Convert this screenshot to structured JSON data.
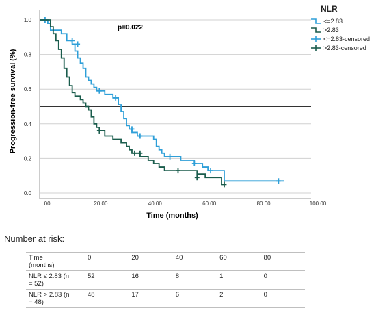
{
  "chart_data": {
    "type": "line",
    "title": "",
    "annotation": "p=0.022",
    "xlabel": "Time (months)",
    "ylabel": "Progression-free survival (%)",
    "xlim": [
      0,
      100
    ],
    "ylim": [
      0,
      1.0
    ],
    "xticks": [
      ".00",
      "20.00",
      "40.00",
      "60.00",
      "80.00",
      "100.00"
    ],
    "xtick_values": [
      0,
      20,
      40,
      60,
      80,
      100
    ],
    "yticks": [
      "0.0",
      "0.2",
      "0.4",
      "0.6",
      "0.8",
      "1.0"
    ],
    "ytick_values": [
      0,
      0.2,
      0.4,
      0.6,
      0.8,
      1.0
    ],
    "reference_line_y": 0.5,
    "grid": "horizontal",
    "legend": {
      "title": "NLR",
      "placement": "right",
      "entries": [
        "<=2.83",
        ">2.83",
        "<=2.83-censored",
        ">2.83-censored"
      ]
    },
    "series": [
      {
        "name": "<=2.83",
        "color": "#2e9fd8",
        "steps": [
          [
            0,
            1.0
          ],
          [
            3,
            0.98
          ],
          [
            4,
            0.94
          ],
          [
            8,
            0.92
          ],
          [
            10,
            0.88
          ],
          [
            12,
            0.86
          ],
          [
            13,
            0.82
          ],
          [
            14,
            0.78
          ],
          [
            15,
            0.75
          ],
          [
            16,
            0.72
          ],
          [
            17,
            0.67
          ],
          [
            18,
            0.65
          ],
          [
            19,
            0.63
          ],
          [
            20,
            0.61
          ],
          [
            21,
            0.59
          ],
          [
            24,
            0.57
          ],
          [
            27,
            0.55
          ],
          [
            29,
            0.51
          ],
          [
            30,
            0.47
          ],
          [
            31,
            0.43
          ],
          [
            32,
            0.39
          ],
          [
            33,
            0.37
          ],
          [
            34,
            0.35
          ],
          [
            36,
            0.33
          ],
          [
            42,
            0.31
          ],
          [
            43,
            0.27
          ],
          [
            44,
            0.25
          ],
          [
            45,
            0.23
          ],
          [
            46,
            0.21
          ],
          [
            52,
            0.19
          ],
          [
            57,
            0.17
          ],
          [
            60,
            0.15
          ],
          [
            62,
            0.13
          ],
          [
            68,
            0.07
          ],
          [
            90,
            0.07
          ]
        ],
        "censored": [
          [
            2,
            1.0
          ],
          [
            12,
            0.88
          ],
          [
            14,
            0.86
          ],
          [
            22,
            0.59
          ],
          [
            28,
            0.55
          ],
          [
            34,
            0.37
          ],
          [
            37,
            0.33
          ],
          [
            48,
            0.21
          ],
          [
            57,
            0.17
          ],
          [
            63,
            0.13
          ],
          [
            88,
            0.07
          ]
        ]
      },
      {
        "name": ">2.83",
        "color": "#1a5c4c",
        "steps": [
          [
            0,
            1.0
          ],
          [
            4,
            0.96
          ],
          [
            5,
            0.92
          ],
          [
            6,
            0.88
          ],
          [
            7,
            0.83
          ],
          [
            8,
            0.78
          ],
          [
            9,
            0.72
          ],
          [
            10,
            0.67
          ],
          [
            11,
            0.62
          ],
          [
            12,
            0.58
          ],
          [
            13,
            0.56
          ],
          [
            15,
            0.54
          ],
          [
            16,
            0.52
          ],
          [
            17,
            0.5
          ],
          [
            18,
            0.48
          ],
          [
            19,
            0.44
          ],
          [
            20,
            0.4
          ],
          [
            21,
            0.38
          ],
          [
            22,
            0.36
          ],
          [
            24,
            0.33
          ],
          [
            27,
            0.31
          ],
          [
            30,
            0.29
          ],
          [
            32,
            0.27
          ],
          [
            33,
            0.25
          ],
          [
            34,
            0.23
          ],
          [
            37,
            0.21
          ],
          [
            40,
            0.19
          ],
          [
            42,
            0.17
          ],
          [
            44,
            0.15
          ],
          [
            46,
            0.13
          ],
          [
            58,
            0.11
          ],
          [
            61,
            0.09
          ],
          [
            67,
            0.05
          ],
          [
            68,
            0.05
          ]
        ],
        "censored": [
          [
            22,
            0.36
          ],
          [
            35,
            0.23
          ],
          [
            37,
            0.23
          ],
          [
            51,
            0.13
          ],
          [
            58,
            0.09
          ],
          [
            68,
            0.05
          ]
        ]
      }
    ]
  },
  "risk_table": {
    "heading": "Number at risk:",
    "header": {
      "label": "Time\n(months)",
      "cells": [
        "0",
        "20",
        "40",
        "60",
        "80"
      ]
    },
    "rows": [
      {
        "label": "NLR ≤ 2.83 (n\n= 52)",
        "cells": [
          "52",
          "16",
          "8",
          "1",
          "0"
        ]
      },
      {
        "label": "NLR > 2.83 (n\n= 48)",
        "cells": [
          "48",
          "17",
          "6",
          "2",
          "0"
        ]
      }
    ]
  }
}
